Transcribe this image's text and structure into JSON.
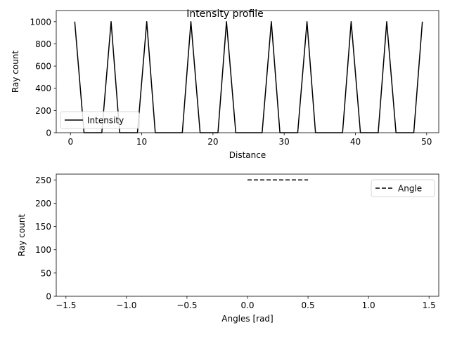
{
  "figure_title": "Intensity profile",
  "chart_data": [
    {
      "type": "line",
      "xlabel": "Distance",
      "ylabel": "Ray count",
      "xlim": [
        -2,
        51.7
      ],
      "ylim": [
        0,
        1100
      ],
      "xticks": [
        0,
        10,
        20,
        30,
        40,
        50
      ],
      "xtick_labels": [
        "0",
        "10",
        "20",
        "30",
        "40",
        "50"
      ],
      "yticks": [
        0,
        200,
        400,
        600,
        800,
        1000
      ],
      "ytick_labels": [
        "0",
        "200",
        "400",
        "600",
        "800",
        "1000"
      ],
      "grid": false,
      "legend": "lower-left",
      "series": [
        {
          "name": "Intensity",
          "color": "#000000",
          "linestyle": "solid",
          "x": [
            0.6,
            1.9,
            4.4,
            5.7,
            6.9,
            9.4,
            10.7,
            11.9,
            15.7,
            16.9,
            18.2,
            20.7,
            21.9,
            23.2,
            26.9,
            28.2,
            29.4,
            31.9,
            33.2,
            34.4,
            38.2,
            39.4,
            40.7,
            43.2,
            44.4,
            45.7,
            48.2,
            49.4
          ],
          "y": [
            1000,
            0,
            0,
            1000,
            0,
            0,
            1000,
            0,
            0,
            1000,
            0,
            0,
            1000,
            0,
            0,
            1000,
            0,
            0,
            1000,
            0,
            0,
            1000,
            0,
            0,
            1000,
            0,
            0,
            1000
          ]
        }
      ]
    },
    {
      "type": "line",
      "xlabel": "Angles [rad]",
      "ylabel": "Ray count",
      "xlim": [
        -1.58,
        1.58
      ],
      "ylim": [
        0,
        262.5
      ],
      "xticks": [
        -1.5,
        -1.0,
        -0.5,
        0.0,
        0.5,
        1.0,
        1.5
      ],
      "xtick_labels": [
        "−1.5",
        "−1.0",
        "−0.5",
        "0.0",
        "0.5",
        "1.0",
        "1.5"
      ],
      "yticks": [
        0,
        50,
        100,
        150,
        200,
        250
      ],
      "ytick_labels": [
        "0",
        "50",
        "100",
        "150",
        "200",
        "250"
      ],
      "grid": false,
      "legend": "top-right",
      "series": [
        {
          "name": "Angle",
          "color": "#000000",
          "linestyle": "dashed",
          "x": [
            0.0,
            0.5
          ],
          "y": [
            250,
            250
          ]
        }
      ]
    }
  ]
}
